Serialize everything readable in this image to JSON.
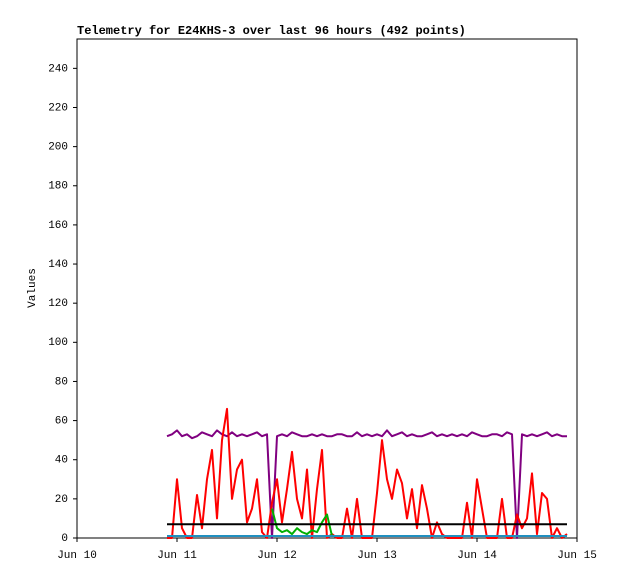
{
  "chart_data": {
    "type": "line",
    "title": "Telemetry for E24KHS-3 over last 96 hours (492 points)",
    "y_label": "Values",
    "xlim": [
      10,
      15
    ],
    "xticks": [
      {
        "value": 10,
        "label": "Jun 10"
      },
      {
        "value": 11,
        "label": "Jun 11"
      },
      {
        "value": 12,
        "label": "Jun 12"
      },
      {
        "value": 13,
        "label": "Jun 13"
      },
      {
        "value": 14,
        "label": "Jun 14"
      },
      {
        "value": 15,
        "label": "Jun 15"
      }
    ],
    "ylim": [
      0,
      255
    ],
    "yticks": [
      0,
      20,
      40,
      60,
      80,
      100,
      120,
      140,
      160,
      180,
      200,
      220,
      240
    ],
    "x": [
      10.9,
      10.95,
      11,
      11.05,
      11.1,
      11.15,
      11.2,
      11.25,
      11.3,
      11.35,
      11.4,
      11.45,
      11.5,
      11.55,
      11.6,
      11.65,
      11.7,
      11.75,
      11.8,
      11.85,
      11.9,
      11.95,
      12,
      12.05,
      12.1,
      12.15,
      12.2,
      12.25,
      12.3,
      12.35,
      12.4,
      12.45,
      12.5,
      12.55,
      12.6,
      12.65,
      12.7,
      12.75,
      12.8,
      12.85,
      12.9,
      12.95,
      13,
      13.05,
      13.1,
      13.15,
      13.2,
      13.25,
      13.3,
      13.35,
      13.4,
      13.45,
      13.5,
      13.55,
      13.6,
      13.65,
      13.7,
      13.75,
      13.8,
      13.85,
      13.9,
      13.95,
      14,
      14.05,
      14.1,
      14.15,
      14.2,
      14.25,
      14.3,
      14.35,
      14.4,
      14.45,
      14.5,
      14.55,
      14.6,
      14.65,
      14.7,
      14.75,
      14.8,
      14.85,
      14.9
    ],
    "series": [
      {
        "color": "#800080",
        "values": [
          52,
          53,
          55,
          52,
          53,
          51,
          52,
          54,
          53,
          52,
          55,
          53,
          52,
          54,
          52,
          53,
          52,
          53,
          54,
          52,
          53,
          0,
          52,
          53,
          52,
          54,
          53,
          52,
          52,
          53,
          52,
          53,
          52,
          52,
          53,
          53,
          52,
          52,
          54,
          52,
          53,
          52,
          53,
          52,
          55,
          52,
          53,
          54,
          52,
          53,
          52,
          52,
          53,
          54,
          52,
          53,
          52,
          53,
          52,
          53,
          52,
          54,
          53,
          52,
          52,
          53,
          53,
          52,
          54,
          53,
          0,
          53,
          52,
          53,
          52,
          53,
          54,
          52,
          53,
          52,
          52
        ]
      },
      {
        "color": "#ff0000",
        "values": [
          0,
          0,
          30,
          5,
          0,
          0,
          22,
          5,
          30,
          45,
          10,
          50,
          66,
          20,
          35,
          40,
          8,
          15,
          30,
          3,
          0,
          18,
          30,
          8,
          25,
          44,
          20,
          10,
          35,
          0,
          25,
          45,
          0,
          2,
          0,
          0,
          15,
          0,
          20,
          0,
          0,
          0,
          23,
          50,
          30,
          20,
          35,
          28,
          10,
          25,
          5,
          27,
          15,
          0,
          8,
          2,
          0,
          0,
          0,
          0,
          18,
          0,
          30,
          15,
          0,
          0,
          0,
          20,
          0,
          0,
          12,
          5,
          10,
          33,
          2,
          23,
          20,
          0,
          5,
          0,
          2
        ]
      },
      {
        "color": "#00b000",
        "values": [
          null,
          null,
          null,
          null,
          null,
          null,
          null,
          null,
          null,
          null,
          null,
          null,
          null,
          null,
          null,
          null,
          null,
          null,
          null,
          null,
          null,
          15,
          5,
          3,
          4,
          2,
          5,
          3,
          2,
          4,
          3,
          8,
          12,
          1,
          null,
          null,
          null,
          null,
          null,
          null,
          null,
          null,
          null,
          null,
          null,
          null,
          null,
          null,
          null,
          null,
          null,
          null,
          null,
          null,
          null,
          null,
          null,
          null,
          null,
          null,
          null,
          null,
          null,
          null,
          null,
          null,
          null,
          null,
          null,
          null,
          null,
          null,
          null,
          null,
          null,
          null,
          null,
          null,
          null,
          null,
          null
        ]
      },
      {
        "color": "#000000",
        "values": [
          7,
          7,
          7,
          7,
          7,
          7,
          7,
          7,
          7,
          7,
          7,
          7,
          7,
          7,
          7,
          7,
          7,
          7,
          7,
          7,
          7,
          7,
          7,
          7,
          7,
          7,
          7,
          7,
          7,
          7,
          7,
          7,
          7,
          7,
          7,
          7,
          7,
          7,
          7,
          7,
          7,
          7,
          7,
          7,
          7,
          7,
          7,
          7,
          7,
          7,
          7,
          7,
          7,
          7,
          7,
          7,
          7,
          7,
          7,
          7,
          7,
          7,
          7,
          7,
          7,
          7,
          7,
          7,
          7,
          7,
          7,
          7,
          7,
          7,
          7,
          7,
          7,
          7,
          7,
          7,
          7
        ]
      },
      {
        "color": "#1f8fbf",
        "values": [
          1,
          1,
          1,
          1,
          1,
          1,
          1,
          1,
          1,
          1,
          1,
          1,
          1,
          1,
          1,
          1,
          1,
          1,
          1,
          1,
          1,
          1,
          1,
          1,
          1,
          1,
          1,
          1,
          1,
          1,
          1,
          1,
          1,
          1,
          1,
          1,
          1,
          1,
          1,
          1,
          1,
          1,
          1,
          1,
          1,
          1,
          1,
          1,
          1,
          1,
          1,
          1,
          1,
          1,
          1,
          1,
          1,
          1,
          1,
          1,
          1,
          1,
          1,
          1,
          1,
          1,
          1,
          1,
          1,
          1,
          1,
          1,
          1,
          1,
          1,
          1,
          1,
          1,
          1,
          1,
          1
        ]
      }
    ]
  }
}
